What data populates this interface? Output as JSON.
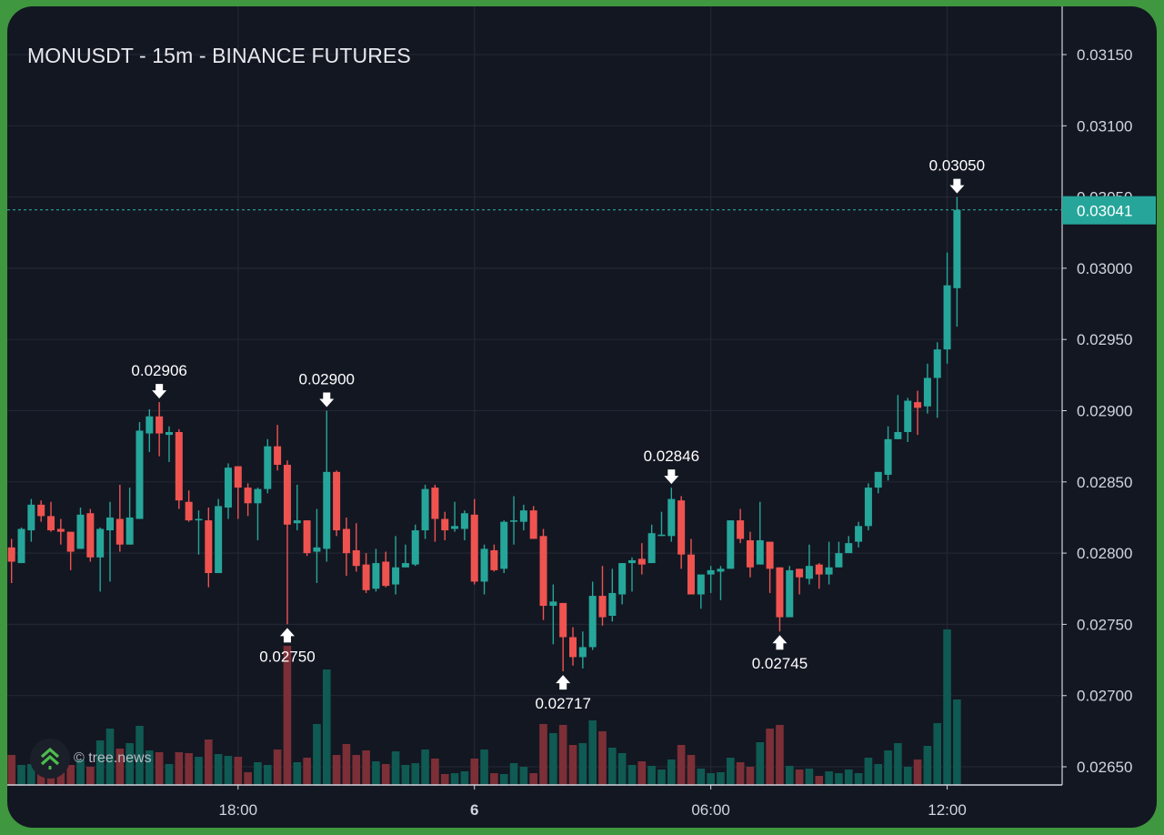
{
  "title": "MONUSDT - 15m - BINANCE FUTURES",
  "watermark": {
    "text": "© tree.news",
    "icon": "tree-news-chevrons-logo-icon"
  },
  "colors": {
    "up": "#26a69a",
    "down": "#ef5350",
    "volume_up": "#0f5a52",
    "volume_down": "#7c2f36",
    "background": "#131722",
    "frame": "#3f973f",
    "grid": "#232733",
    "text": "#d1d4dc"
  },
  "current_price": {
    "label": "0.03041",
    "value": 0.03041,
    "color": "#26a69a"
  },
  "chart_data": {
    "type": "candlestick",
    "title": "MONUSDT - 15m - BINANCE FUTURES",
    "xlabel": "",
    "ylabel": "",
    "ylim": [
      0.0265,
      0.0315
    ],
    "grid": true,
    "y_ticks": [
      "0.03150",
      "0.03100",
      "0.03050",
      "0.03000",
      "0.02950",
      "0.02900",
      "0.02850",
      "0.02800",
      "0.02750",
      "0.02700",
      "0.02650"
    ],
    "x_ticks": [
      {
        "label": "18:00",
        "time": "18:00",
        "bold": false
      },
      {
        "label": "6",
        "time": "00:00",
        "bold": true
      },
      {
        "label": "06:00",
        "time": "06:00",
        "bold": false
      },
      {
        "label": "12:00",
        "time": "12:00",
        "bold": false
      }
    ],
    "times": [
      "12:15",
      "12:30",
      "12:45",
      "13:00",
      "13:15",
      "13:30",
      "13:45",
      "14:00",
      "14:15",
      "14:30",
      "14:45",
      "15:00",
      "15:15",
      "15:30",
      "15:45",
      "16:00",
      "16:15",
      "16:30",
      "16:45",
      "17:00",
      "17:15",
      "17:30",
      "17:45",
      "18:00",
      "18:15",
      "18:30",
      "18:45",
      "19:00",
      "19:15",
      "19:30",
      "19:45",
      "20:00",
      "20:15",
      "20:30",
      "20:45",
      "21:00",
      "21:15",
      "21:30",
      "21:45",
      "22:00",
      "22:15",
      "22:30",
      "22:45",
      "23:00",
      "23:15",
      "23:30",
      "23:45",
      "00:00",
      "00:15",
      "00:30",
      "00:45",
      "01:00",
      "01:15",
      "01:30",
      "01:45",
      "02:00",
      "02:15",
      "02:30",
      "02:45",
      "03:00",
      "03:15",
      "03:30",
      "03:45",
      "04:00",
      "04:15",
      "04:30",
      "04:45",
      "05:00",
      "05:15",
      "05:30",
      "05:45",
      "06:00",
      "06:15",
      "06:30",
      "06:45",
      "07:00",
      "07:15",
      "07:30",
      "07:45",
      "08:00",
      "08:15",
      "08:30",
      "08:45",
      "09:00",
      "09:15",
      "09:30",
      "09:45",
      "10:00",
      "10:15",
      "10:30",
      "10:45",
      "11:00",
      "11:15",
      "11:30",
      "11:45",
      "12:00",
      "12:15"
    ],
    "ohlc": [
      [
        0.02804,
        0.0281,
        0.02779,
        0.02794
      ],
      [
        0.02793,
        0.02818,
        0.02793,
        0.02817
      ],
      [
        0.02816,
        0.02838,
        0.02808,
        0.02834
      ],
      [
        0.02834,
        0.02837,
        0.02822,
        0.02826
      ],
      [
        0.02826,
        0.02836,
        0.02815,
        0.02816
      ],
      [
        0.02817,
        0.02824,
        0.02806,
        0.02815
      ],
      [
        0.02815,
        0.02815,
        0.02788,
        0.02801
      ],
      [
        0.02803,
        0.02832,
        0.02803,
        0.02827
      ],
      [
        0.02828,
        0.02831,
        0.02794,
        0.02797
      ],
      [
        0.02797,
        0.02818,
        0.02773,
        0.02817
      ],
      [
        0.02816,
        0.02836,
        0.0278,
        0.02825
      ],
      [
        0.02824,
        0.02848,
        0.02801,
        0.02806
      ],
      [
        0.02806,
        0.02846,
        0.02806,
        0.02825
      ],
      [
        0.02824,
        0.02892,
        0.02824,
        0.02886
      ],
      [
        0.02884,
        0.02901,
        0.02871,
        0.02896
      ],
      [
        0.02896,
        0.02906,
        0.02868,
        0.02884
      ],
      [
        0.02883,
        0.02889,
        0.02864,
        0.02885
      ],
      [
        0.02885,
        0.02887,
        0.02831,
        0.02837
      ],
      [
        0.02836,
        0.02844,
        0.02822,
        0.02823
      ],
      [
        0.02823,
        0.0283,
        0.02799,
        0.02824
      ],
      [
        0.02823,
        0.02832,
        0.02776,
        0.02786
      ],
      [
        0.02786,
        0.02838,
        0.02786,
        0.02833
      ],
      [
        0.02832,
        0.02863,
        0.02824,
        0.0286
      ],
      [
        0.02861,
        0.02861,
        0.02824,
        0.02846
      ],
      [
        0.02846,
        0.02849,
        0.02826,
        0.02835
      ],
      [
        0.02835,
        0.02846,
        0.02809,
        0.02845
      ],
      [
        0.02845,
        0.0288,
        0.02842,
        0.02875
      ],
      [
        0.02875,
        0.0289,
        0.02858,
        0.02862
      ],
      [
        0.02862,
        0.02865,
        0.0275,
        0.0282
      ],
      [
        0.02821,
        0.02848,
        0.02816,
        0.02823
      ],
      [
        0.02823,
        0.02823,
        0.02798,
        0.028
      ],
      [
        0.02801,
        0.02831,
        0.02779,
        0.02804
      ],
      [
        0.02803,
        0.029,
        0.02794,
        0.02857
      ],
      [
        0.02857,
        0.02858,
        0.02812,
        0.02816
      ],
      [
        0.02817,
        0.02825,
        0.02784,
        0.028
      ],
      [
        0.02802,
        0.02821,
        0.02787,
        0.02791
      ],
      [
        0.02792,
        0.028,
        0.02772,
        0.02774
      ],
      [
        0.02775,
        0.02803,
        0.02773,
        0.02793
      ],
      [
        0.02794,
        0.02801,
        0.02776,
        0.02777
      ],
      [
        0.02778,
        0.02812,
        0.02771,
        0.0279
      ],
      [
        0.0279,
        0.02806,
        0.0279,
        0.02793
      ],
      [
        0.02792,
        0.0282,
        0.02791,
        0.02816
      ],
      [
        0.02816,
        0.02848,
        0.0281,
        0.02845
      ],
      [
        0.02846,
        0.02848,
        0.02808,
        0.02824
      ],
      [
        0.02824,
        0.02829,
        0.02809,
        0.02816
      ],
      [
        0.02817,
        0.02836,
        0.02815,
        0.02819
      ],
      [
        0.02817,
        0.0283,
        0.02809,
        0.02828
      ],
      [
        0.02827,
        0.02838,
        0.02778,
        0.0278
      ],
      [
        0.0278,
        0.02806,
        0.02771,
        0.02803
      ],
      [
        0.02802,
        0.02806,
        0.02787,
        0.02788
      ],
      [
        0.02789,
        0.02823,
        0.02786,
        0.02822
      ],
      [
        0.02822,
        0.0284,
        0.02806,
        0.02823
      ],
      [
        0.02822,
        0.02834,
        0.02816,
        0.0283
      ],
      [
        0.0283,
        0.02833,
        0.0281,
        0.0281
      ],
      [
        0.02812,
        0.02817,
        0.02753,
        0.02763
      ],
      [
        0.02763,
        0.02778,
        0.02736,
        0.02766
      ],
      [
        0.02765,
        0.02765,
        0.02717,
        0.02741
      ],
      [
        0.02741,
        0.02748,
        0.02721,
        0.02727
      ],
      [
        0.02727,
        0.02745,
        0.02719,
        0.02734
      ],
      [
        0.02734,
        0.0278,
        0.02732,
        0.0277
      ],
      [
        0.0277,
        0.02791,
        0.02749,
        0.02755
      ],
      [
        0.02756,
        0.02789,
        0.02752,
        0.02772
      ],
      [
        0.02771,
        0.02793,
        0.02764,
        0.02793
      ],
      [
        0.02793,
        0.02797,
        0.02773,
        0.02795
      ],
      [
        0.02796,
        0.02807,
        0.02785,
        0.02792
      ],
      [
        0.02793,
        0.0282,
        0.02793,
        0.02814
      ],
      [
        0.02812,
        0.02829,
        0.02812,
        0.02813
      ],
      [
        0.02812,
        0.02846,
        0.02808,
        0.02838
      ],
      [
        0.02837,
        0.0284,
        0.02789,
        0.02799
      ],
      [
        0.02799,
        0.0281,
        0.02771,
        0.02771
      ],
      [
        0.02771,
        0.02785,
        0.02761,
        0.02785
      ],
      [
        0.02785,
        0.02791,
        0.02772,
        0.02788
      ],
      [
        0.02787,
        0.02791,
        0.02767,
        0.02789
      ],
      [
        0.02789,
        0.02823,
        0.02789,
        0.02823
      ],
      [
        0.02823,
        0.02831,
        0.02807,
        0.0281
      ],
      [
        0.02809,
        0.02815,
        0.02783,
        0.0279
      ],
      [
        0.02792,
        0.02836,
        0.02792,
        0.02809
      ],
      [
        0.02808,
        0.02808,
        0.02772,
        0.02789
      ],
      [
        0.0279,
        0.0279,
        0.02745,
        0.02755
      ],
      [
        0.02755,
        0.02791,
        0.02755,
        0.02788
      ],
      [
        0.02789,
        0.02789,
        0.02771,
        0.02783
      ],
      [
        0.02782,
        0.02806,
        0.02778,
        0.02791
      ],
      [
        0.02792,
        0.02793,
        0.02775,
        0.02785
      ],
      [
        0.02785,
        0.02808,
        0.02778,
        0.0279
      ],
      [
        0.0279,
        0.02808,
        0.0279,
        0.028
      ],
      [
        0.028,
        0.02812,
        0.028,
        0.02807
      ],
      [
        0.02808,
        0.02822,
        0.02804,
        0.02819
      ],
      [
        0.02819,
        0.02849,
        0.02816,
        0.02846
      ],
      [
        0.02846,
        0.02857,
        0.02842,
        0.02857
      ],
      [
        0.02855,
        0.02889,
        0.02851,
        0.0288
      ],
      [
        0.0288,
        0.02911,
        0.0288,
        0.02885
      ],
      [
        0.02885,
        0.02909,
        0.02878,
        0.02907
      ],
      [
        0.02906,
        0.02914,
        0.02883,
        0.02902
      ],
      [
        0.02903,
        0.02933,
        0.02898,
        0.02923
      ],
      [
        0.02923,
        0.02948,
        0.02895,
        0.02943
      ],
      [
        0.02943,
        0.03011,
        0.02933,
        0.02988
      ],
      [
        0.02986,
        0.0305,
        0.02959,
        0.03041
      ]
    ],
    "volume_relative": [
      33,
      22,
      23,
      17,
      15,
      18,
      22,
      28,
      20,
      49,
      62,
      40,
      46,
      65,
      38,
      36,
      23,
      36,
      35,
      31,
      50,
      34,
      32,
      31,
      14,
      25,
      22,
      39,
      153,
      25,
      30,
      67,
      127,
      33,
      45,
      33,
      38,
      26,
      23,
      37,
      22,
      24,
      39,
      29,
      12,
      13,
      15,
      29,
      39,
      13,
      12,
      24,
      20,
      13,
      67,
      57,
      66,
      44,
      46,
      71,
      59,
      41,
      35,
      22,
      26,
      21,
      17,
      28,
      44,
      33,
      18,
      13,
      14,
      30,
      25,
      20,
      47,
      62,
      66,
      21,
      17,
      18,
      10,
      15,
      13,
      17,
      13,
      30,
      23,
      38,
      46,
      20,
      28,
      43,
      68,
      171,
      94
    ],
    "annotations": [
      {
        "candle": 16,
        "kind": "high",
        "label": "0.02906"
      },
      {
        "candle": 33,
        "kind": "high",
        "label": "0.02900"
      },
      {
        "candle": 29,
        "kind": "low",
        "label": "0.02750"
      },
      {
        "candle": 57,
        "kind": "low",
        "label": "0.02717"
      },
      {
        "candle": 68,
        "kind": "high",
        "label": "0.02846"
      },
      {
        "candle": 79,
        "kind": "low",
        "label": "0.02745"
      },
      {
        "candle": 97,
        "kind": "high",
        "label": "0.03050"
      }
    ]
  }
}
